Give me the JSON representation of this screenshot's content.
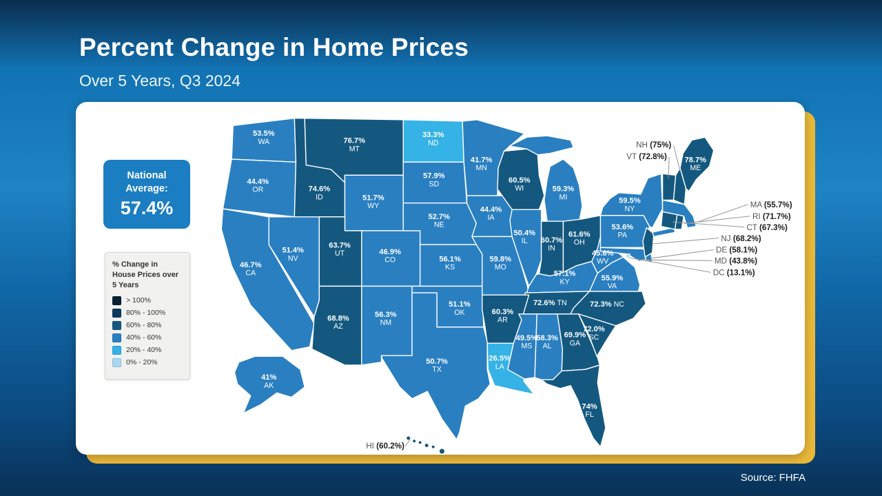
{
  "header": {
    "title": "Percent Change in Home Prices",
    "subtitle": "Over 5 Years, Q3 2024"
  },
  "national_average": {
    "label": "National Average:",
    "value": "57.4%"
  },
  "legend": {
    "title": "% Change in House Prices over 5 Years",
    "items": [
      {
        "label": "> 100%",
        "color": "#0b1f33"
      },
      {
        "label": "80% - 100%",
        "color": "#0e3a5f"
      },
      {
        "label": "60% - 80%",
        "color": "#14587f"
      },
      {
        "label": "40% - 60%",
        "color": "#2a7fc1"
      },
      {
        "label": "20% - 40%",
        "color": "#35b2e6"
      },
      {
        "label": "0% - 20%",
        "color": "#a7d8f0"
      }
    ]
  },
  "source": "Source: FHFA",
  "chart_data": {
    "type": "choropleth",
    "title": "Percent Change in Home Prices Over 5 Years, Q3 2024",
    "unit": "%",
    "national_average_pct": 57.4,
    "bucket_thresholds": [
      20,
      40,
      60,
      80,
      100
    ],
    "legend_position": "left",
    "states": [
      {
        "abbr": "WA",
        "value": 53.5,
        "display": "53.5%"
      },
      {
        "abbr": "OR",
        "value": 44.4,
        "display": "44.4%"
      },
      {
        "abbr": "CA",
        "value": 46.7,
        "display": "46.7%"
      },
      {
        "abbr": "NV",
        "value": 51.4,
        "display": "51.4%"
      },
      {
        "abbr": "ID",
        "value": 74.6,
        "display": "74.6%"
      },
      {
        "abbr": "MT",
        "value": 76.7,
        "display": "76.7%"
      },
      {
        "abbr": "WY",
        "value": 51.7,
        "display": "51.7%"
      },
      {
        "abbr": "UT",
        "value": 63.7,
        "display": "63.7%"
      },
      {
        "abbr": "CO",
        "value": 46.9,
        "display": "46.9%"
      },
      {
        "abbr": "AZ",
        "value": 68.8,
        "display": "68.8%"
      },
      {
        "abbr": "NM",
        "value": 56.3,
        "display": "56.3%"
      },
      {
        "abbr": "ND",
        "value": 33.3,
        "display": "33.3%"
      },
      {
        "abbr": "SD",
        "value": 57.9,
        "display": "57.9%"
      },
      {
        "abbr": "NE",
        "value": 52.7,
        "display": "52.7%"
      },
      {
        "abbr": "KS",
        "value": 56.1,
        "display": "56.1%"
      },
      {
        "abbr": "OK",
        "value": 51.1,
        "display": "51.1%"
      },
      {
        "abbr": "TX",
        "value": 50.7,
        "display": "50.7%"
      },
      {
        "abbr": "MN",
        "value": 41.7,
        "display": "41.7%"
      },
      {
        "abbr": "IA",
        "value": 44.4,
        "display": "44.4%"
      },
      {
        "abbr": "MO",
        "value": 59.8,
        "display": "59.8%"
      },
      {
        "abbr": "WI",
        "value": 60.5,
        "display": "60.5%"
      },
      {
        "abbr": "IL",
        "value": 50.4,
        "display": "50.4%"
      },
      {
        "abbr": "MI",
        "value": 59.3,
        "display": "59.3%"
      },
      {
        "abbr": "IN",
        "value": 60.7,
        "display": "60.7%"
      },
      {
        "abbr": "OH",
        "value": 61.6,
        "display": "61.6%"
      },
      {
        "abbr": "KY",
        "value": 57.1,
        "display": "57.1%"
      },
      {
        "abbr": "TN",
        "value": 72.6,
        "display": "72.6%"
      },
      {
        "abbr": "AR",
        "value": 60.3,
        "display": "60.3%"
      },
      {
        "abbr": "LA",
        "value": 26.5,
        "display": "26.5%"
      },
      {
        "abbr": "MS",
        "value": 49.5,
        "display": "49.5%"
      },
      {
        "abbr": "AL",
        "value": 58.3,
        "display": "58.3%"
      },
      {
        "abbr": "GA",
        "value": 69.9,
        "display": "69.9%"
      },
      {
        "abbr": "FL",
        "value": 74,
        "display": "74%"
      },
      {
        "abbr": "SC",
        "value": 72.0,
        "display": "72.0%"
      },
      {
        "abbr": "NC",
        "value": 72.3,
        "display": "72.3%"
      },
      {
        "abbr": "VA",
        "value": 55.9,
        "display": "55.9%"
      },
      {
        "abbr": "WV",
        "value": 45.6,
        "display": "45.6%"
      },
      {
        "abbr": "PA",
        "value": 53.6,
        "display": "53.6%"
      },
      {
        "abbr": "NY",
        "value": 59.5,
        "display": "59.5%"
      },
      {
        "abbr": "ME",
        "value": 78.7,
        "display": "78.7%"
      },
      {
        "abbr": "NH",
        "value": 75,
        "display": "75%",
        "callout": true
      },
      {
        "abbr": "VT",
        "value": 72.8,
        "display": "72.8%",
        "callout": true
      },
      {
        "abbr": "MA",
        "value": 55.7,
        "display": "55.7%",
        "callout": true
      },
      {
        "abbr": "RI",
        "value": 71.7,
        "display": "71.7%",
        "callout": true
      },
      {
        "abbr": "CT",
        "value": 67.3,
        "display": "67.3%",
        "callout": true
      },
      {
        "abbr": "NJ",
        "value": 68.2,
        "display": "68.2%",
        "callout": true
      },
      {
        "abbr": "DE",
        "value": 58.1,
        "display": "58.1%",
        "callout": true
      },
      {
        "abbr": "MD",
        "value": 43.8,
        "display": "43.8%",
        "callout": true
      },
      {
        "abbr": "DC",
        "value": 13.1,
        "display": "13.1%",
        "callout": true
      },
      {
        "abbr": "AK",
        "value": 41,
        "display": "41%"
      },
      {
        "abbr": "HI",
        "value": 60.2,
        "display": "60.2%",
        "callout": true
      }
    ]
  }
}
